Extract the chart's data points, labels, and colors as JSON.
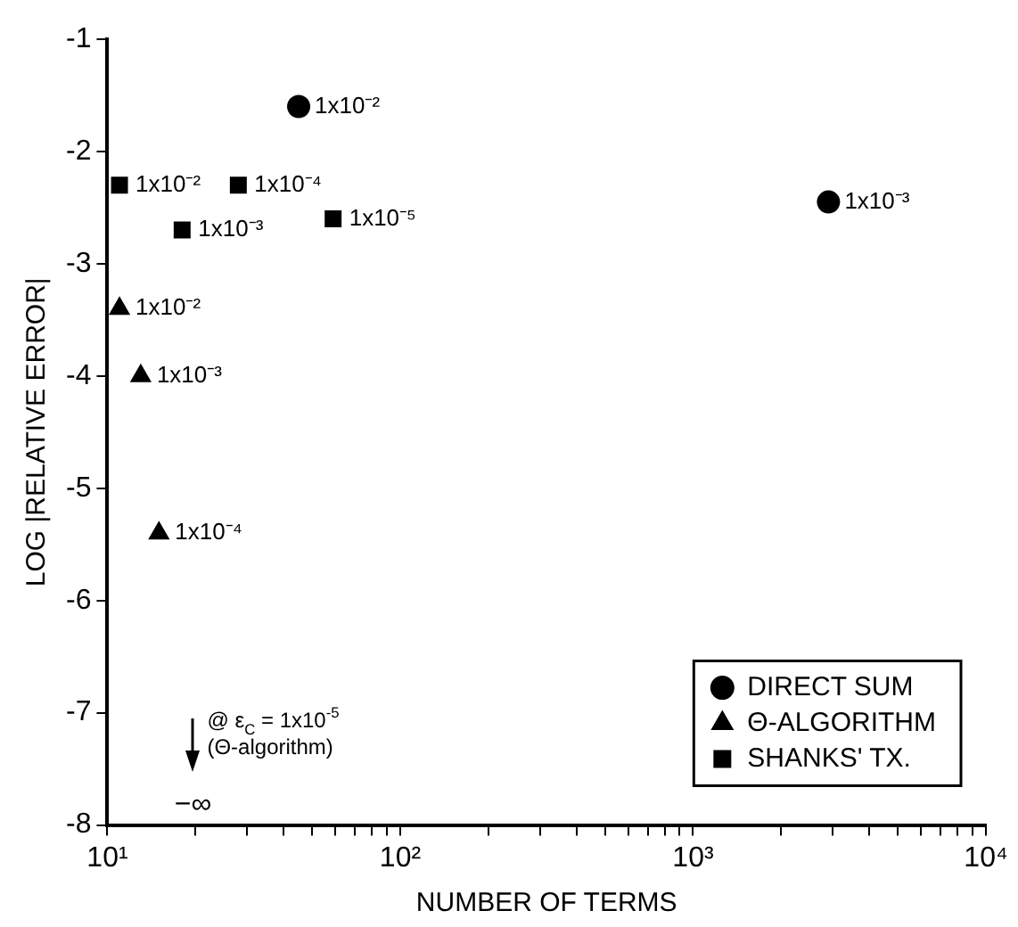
{
  "chart_data": {
    "type": "scatter",
    "xlabel": "NUMBER OF TERMS",
    "ylabel": "LOG |RELATIVE ERROR|",
    "log": "x",
    "xlim": [
      10,
      10000
    ],
    "ylim": [
      -8,
      -1
    ],
    "xticks": [
      {
        "value": 10,
        "label": "10¹"
      },
      {
        "value": 20,
        "label": null
      },
      {
        "value": 30,
        "label": null
      },
      {
        "value": 40,
        "label": null
      },
      {
        "value": 50,
        "label": null
      },
      {
        "value": 60,
        "label": null
      },
      {
        "value": 70,
        "label": null
      },
      {
        "value": 80,
        "label": null
      },
      {
        "value": 90,
        "label": null
      },
      {
        "value": 100,
        "label": "10²"
      },
      {
        "value": 200,
        "label": null
      },
      {
        "value": 300,
        "label": null
      },
      {
        "value": 400,
        "label": null
      },
      {
        "value": 500,
        "label": null
      },
      {
        "value": 600,
        "label": null
      },
      {
        "value": 700,
        "label": null
      },
      {
        "value": 800,
        "label": null
      },
      {
        "value": 900,
        "label": null
      },
      {
        "value": 1000,
        "label": "10³"
      },
      {
        "value": 2000,
        "label": null
      },
      {
        "value": 3000,
        "label": null
      },
      {
        "value": 4000,
        "label": null
      },
      {
        "value": 5000,
        "label": null
      },
      {
        "value": 6000,
        "label": null
      },
      {
        "value": 7000,
        "label": null
      },
      {
        "value": 8000,
        "label": null
      },
      {
        "value": 9000,
        "label": null
      },
      {
        "value": 10000,
        "label": "10⁴"
      }
    ],
    "yticks": [
      -1,
      -2,
      -3,
      -4,
      -5,
      -6,
      -7,
      -8
    ],
    "grid": false,
    "legend": "bottom right",
    "series": [
      {
        "name": "DIRECT SUM",
        "color": "#000000",
        "marker": "circle",
        "x": [
          45,
          2900
        ],
        "values": [
          -1.6,
          -2.45
        ]
      },
      {
        "name": "Θ-ALGORITHM",
        "color": "#000000",
        "marker": "triangle",
        "x": [
          11,
          13,
          15
        ],
        "values": [
          -3.4,
          -4.0,
          -5.4
        ]
      },
      {
        "name": "SHANKS' TX.",
        "color": "#000000",
        "marker": "square",
        "x": [
          11,
          18,
          28,
          59
        ],
        "values": [
          -2.3,
          -2.7,
          -2.3,
          -2.6
        ]
      }
    ],
    "annotations": [
      {
        "text": "1x10⁻²",
        "x": 45,
        "y": -1.6
      },
      {
        "text": "1x10⁻³",
        "x": 2900,
        "y": -2.45
      },
      {
        "text": "1x10⁻²",
        "x": 11,
        "y": -3.4
      },
      {
        "text": "1x10⁻³",
        "x": 13,
        "y": -4.0
      },
      {
        "text": "1x10⁻⁴",
        "x": 15,
        "y": -5.4
      },
      {
        "text": "1x10⁻²",
        "x": 11,
        "y": -2.3
      },
      {
        "text": "1x10⁻³",
        "x": 18,
        "y": -2.7
      },
      {
        "text": "1x10⁻⁴",
        "x": 28,
        "y": -2.3
      },
      {
        "text": "1x10⁻⁵",
        "x": 59,
        "y": -2.6
      },
      "@ ε$_{C}$ = 1x10$^{-5}$ (Θ-algorithm)",
      "−∞"
    ]
  }
}
